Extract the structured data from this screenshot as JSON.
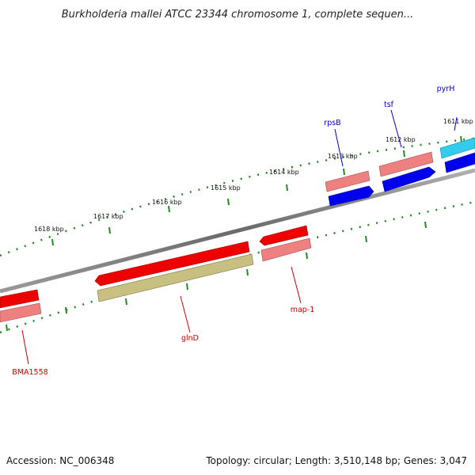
{
  "title": "Burkholderia mallei ATCC 23344 chromosome 1, complete sequen...",
  "footer": {
    "accession": "Accession: NC_006348",
    "summary": "Topology: circular; Length: 3,510,148 bp; Genes: 3,047"
  },
  "scale_labels": [
    "1611 kbp",
    "1612 kbp",
    "1613 kbp",
    "1614 kbp",
    "1615 kbp",
    "1616 kbp",
    "1617 kbp",
    "1618 kbp"
  ],
  "genes": [
    {
      "name": "pyrH",
      "strand": "forward"
    },
    {
      "name": "tsf",
      "strand": "forward"
    },
    {
      "name": "rpsB",
      "strand": "forward"
    },
    {
      "name": "map-1",
      "strand": "reverse"
    },
    {
      "name": "glnD",
      "strand": "reverse"
    },
    {
      "name": "BMA1558",
      "strand": "reverse"
    }
  ],
  "colors": {
    "backbone": "#808080",
    "forward_cds": "#0000ee",
    "forward_cds_light": "#33ccee",
    "forward_gene": "#ee8080",
    "reverse_cds": "#ee0000",
    "reverse_gene": "#ee8080",
    "reverse_misc": "#c8c080",
    "ticks": "#228822",
    "forward_label": "#0000cc",
    "reverse_label": "#cc0000"
  }
}
